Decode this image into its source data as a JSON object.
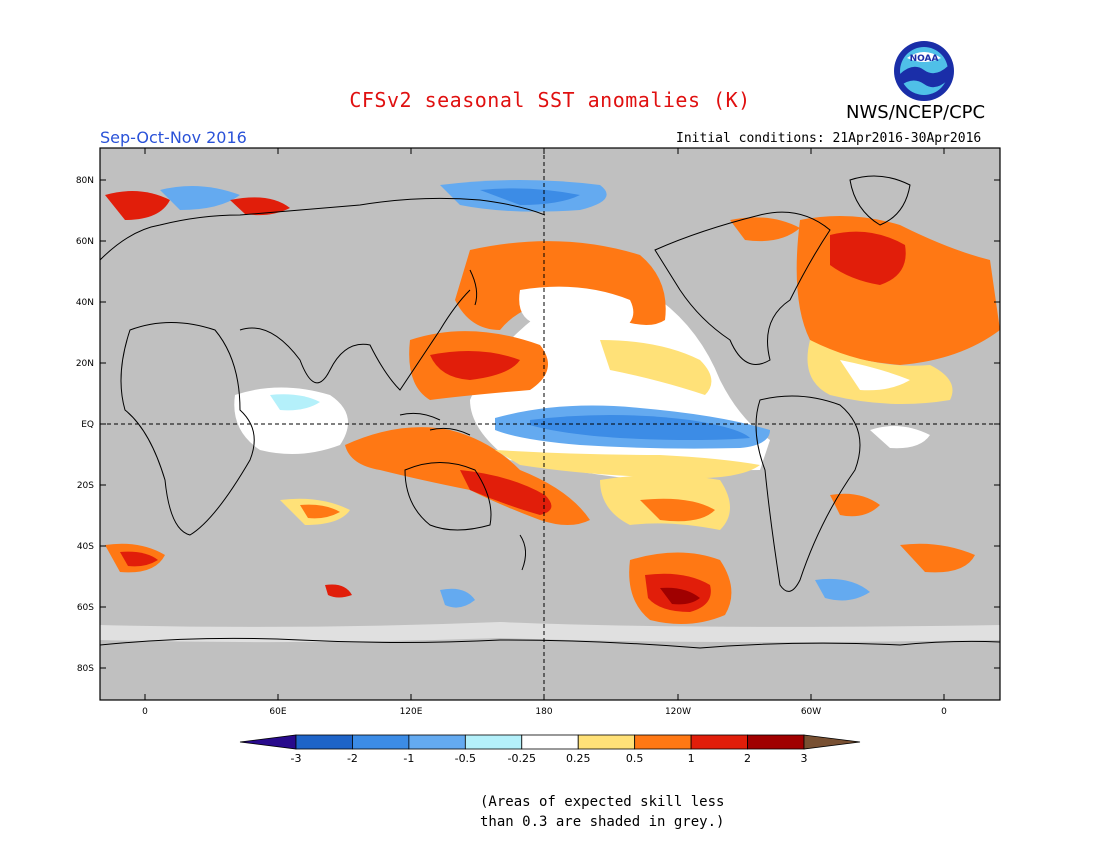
{
  "header": {
    "title": "CFSv2 seasonal SST anomalies (K)",
    "org": "NWS/NCEP/CPC",
    "season": "Sep-Oct-Nov 2016",
    "initial_conditions": "Initial conditions: 21Apr2016-30Apr2016",
    "logo_text": "NOAA"
  },
  "map": {
    "lat_labels": [
      "80N",
      "60N",
      "40N",
      "20N",
      "EQ",
      "20S",
      "40S",
      "60S",
      "80S"
    ],
    "lon_labels": [
      "0",
      "60E",
      "120E",
      "180",
      "120W",
      "60W",
      "0"
    ],
    "land_color": "#c0c0c0",
    "background_color": "#ffffff"
  },
  "colorbar": {
    "labels": [
      "-3",
      "-2",
      "-1",
      "-0.5",
      "-0.25",
      "0.25",
      "0.5",
      "1",
      "2",
      "3"
    ],
    "colors": [
      "#280a8c",
      "#1e64c8",
      "#3c8ce6",
      "#64aaf0",
      "#b4f0fa",
      "#ffffff",
      "#ffe178",
      "#ff7814",
      "#e11e0a",
      "#a00000",
      "#785032"
    ]
  },
  "footnote": {
    "line1": "(Areas of expected skill less",
    "line2": "than 0.3 are shaded in grey.)"
  }
}
